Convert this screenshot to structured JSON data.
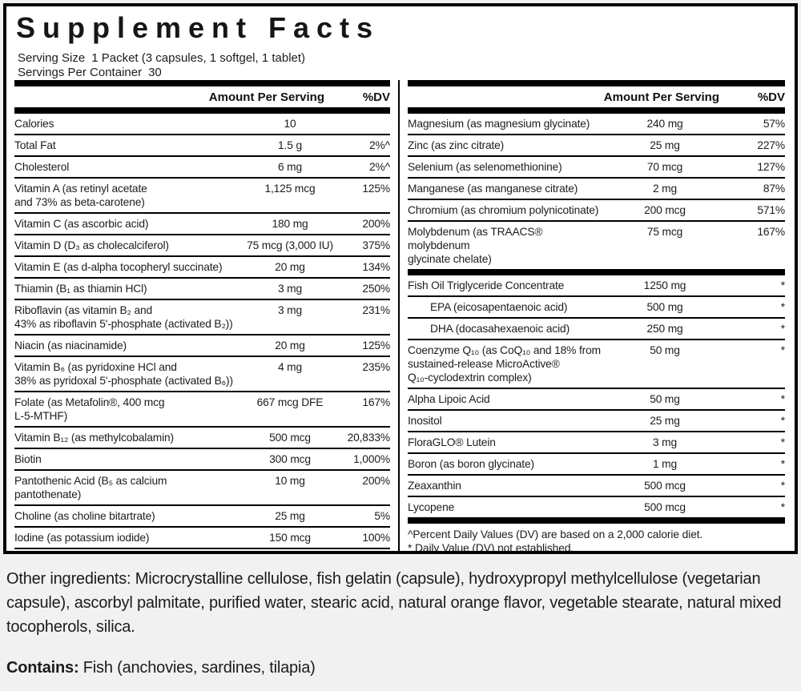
{
  "title": "Supplement Facts",
  "serving": {
    "size_label": "Serving Size",
    "size_value": "1 Packet (3 capsules, 1 softgel, 1 tablet)",
    "per_container_label": "Servings Per Container",
    "per_container_value": "30"
  },
  "columns": {
    "amount_header": "Amount Per Serving",
    "dv_header": "%DV"
  },
  "left_table": {
    "rows": [
      {
        "name": "Calories",
        "amount": "10",
        "dv": ""
      },
      {
        "name": "Total Fat",
        "amount": "1.5 g",
        "dv": "2%^"
      },
      {
        "name": "Cholesterol",
        "amount": "6 mg",
        "dv": "2%^"
      },
      {
        "name": "Vitamin A (as retinyl acetate\nand 73% as beta-carotene)",
        "amount": "1,125 mcg",
        "dv": "125%"
      },
      {
        "name": "Vitamin C (as ascorbic acid)",
        "amount": "180 mg",
        "dv": "200%"
      },
      {
        "name": "Vitamin D (D₃ as cholecalciferol)",
        "amount": "75 mcg (3,000 IU)",
        "dv": "375%"
      },
      {
        "name": "Vitamin E (as d-alpha tocopheryl succinate)",
        "amount": "20 mg",
        "dv": "134%"
      },
      {
        "name": "Thiamin (B₁ as thiamin HCl)",
        "amount": "3 mg",
        "dv": "250%"
      },
      {
        "name": "Riboflavin (as vitamin B₂ and\n43% as riboflavin 5'-phosphate (activated B₂))",
        "amount": "3 mg",
        "dv": "231%"
      },
      {
        "name": "Niacin (as niacinamide)",
        "amount": "20 mg",
        "dv": "125%"
      },
      {
        "name": "Vitamin B₆ (as pyridoxine HCl and\n38% as pyridoxal 5'-phosphate (activated B₆))",
        "amount": "4 mg",
        "dv": "235%"
      },
      {
        "name": "Folate (as Metafolin®, 400 mcg\nL-5-MTHF)",
        "amount": "667 mcg DFE",
        "dv": "167%"
      },
      {
        "name": "Vitamin B₁₂ (as methylcobalamin)",
        "amount": "500 mcg",
        "dv": "20,833%"
      },
      {
        "name": "Biotin",
        "amount": "300 mcg",
        "dv": "1,000%"
      },
      {
        "name": "Pantothenic Acid (B₅ as calcium pantothenate)",
        "amount": "10 mg",
        "dv": "200%"
      },
      {
        "name": "Choline (as choline bitartrate)",
        "amount": "25 mg",
        "dv": "5%"
      },
      {
        "name": "Iodine (as potassium iodide)",
        "amount": "150 mcg",
        "dv": "100%"
      }
    ]
  },
  "right_table": {
    "rows": [
      {
        "name": "Magnesium (as magnesium glycinate)",
        "amount": "240 mg",
        "dv": "57%"
      },
      {
        "name": "Zinc (as zinc citrate)",
        "amount": "25 mg",
        "dv": "227%"
      },
      {
        "name": "Selenium (as selenomethionine)",
        "amount": "70 mcg",
        "dv": "127%"
      },
      {
        "name": "Manganese (as manganese citrate)",
        "amount": "2 mg",
        "dv": "87%"
      },
      {
        "name": "Chromium (as chromium polynicotinate)",
        "amount": "200 mcg",
        "dv": "571%"
      },
      {
        "name": "Molybdenum (as TRAACS® molybdenum\nglycinate chelate)",
        "amount": "75 mcg",
        "dv": "167%",
        "divider_after": "thick"
      },
      {
        "name": "Fish Oil Triglyceride Concentrate",
        "amount": "1250 mg",
        "dv": "*"
      },
      {
        "name": "EPA (eicosapentaenoic acid)",
        "amount": "500 mg",
        "dv": "*",
        "indent": true
      },
      {
        "name": "DHA (docasahexaenoic acid)",
        "amount": "250 mg",
        "dv": "*",
        "indent": true
      },
      {
        "name": "Coenzyme Q₁₀ (as CoQ₁₀ and 18% from\nsustained-release MicroActive®\nQ₁₀-cyclodextrin complex)",
        "amount": "50 mg",
        "dv": "*"
      },
      {
        "name": "Alpha Lipoic Acid",
        "amount": "50 mg",
        "dv": "*"
      },
      {
        "name": "Inositol",
        "amount": "25 mg",
        "dv": "*"
      },
      {
        "name": "FloraGLO® Lutein",
        "amount": "3 mg",
        "dv": "*"
      },
      {
        "name": "Boron (as boron glycinate)",
        "amount": "1 mg",
        "dv": "*"
      },
      {
        "name": "Zeaxanthin",
        "amount": "500 mcg",
        "dv": "*"
      },
      {
        "name": "Lycopene",
        "amount": "500 mcg",
        "dv": "*",
        "divider_after": "thick"
      }
    ]
  },
  "footnotes": [
    "^Percent Daily Values (DV) are based on a 2,000 calorie diet.",
    "* Daily Value (DV) not established."
  ],
  "other_ingredients": {
    "label": "Other ingredients:",
    "text": "Microcrystalline cellulose, fish gelatin (capsule), hydroxypropyl methylcellulose (vegetarian capsule), ascorbyl palmitate, purified water, stearic acid, natural orange flavor, vegetable stearate, natural mixed tocopherols, silica."
  },
  "contains": {
    "label": "Contains:",
    "text": "Fish (anchovies, sardines, tilapia)"
  },
  "colors": {
    "panel_background": "#ffffff",
    "page_background": "#f1f1f2",
    "rule": "#000000",
    "text": "#1a1a1a"
  }
}
